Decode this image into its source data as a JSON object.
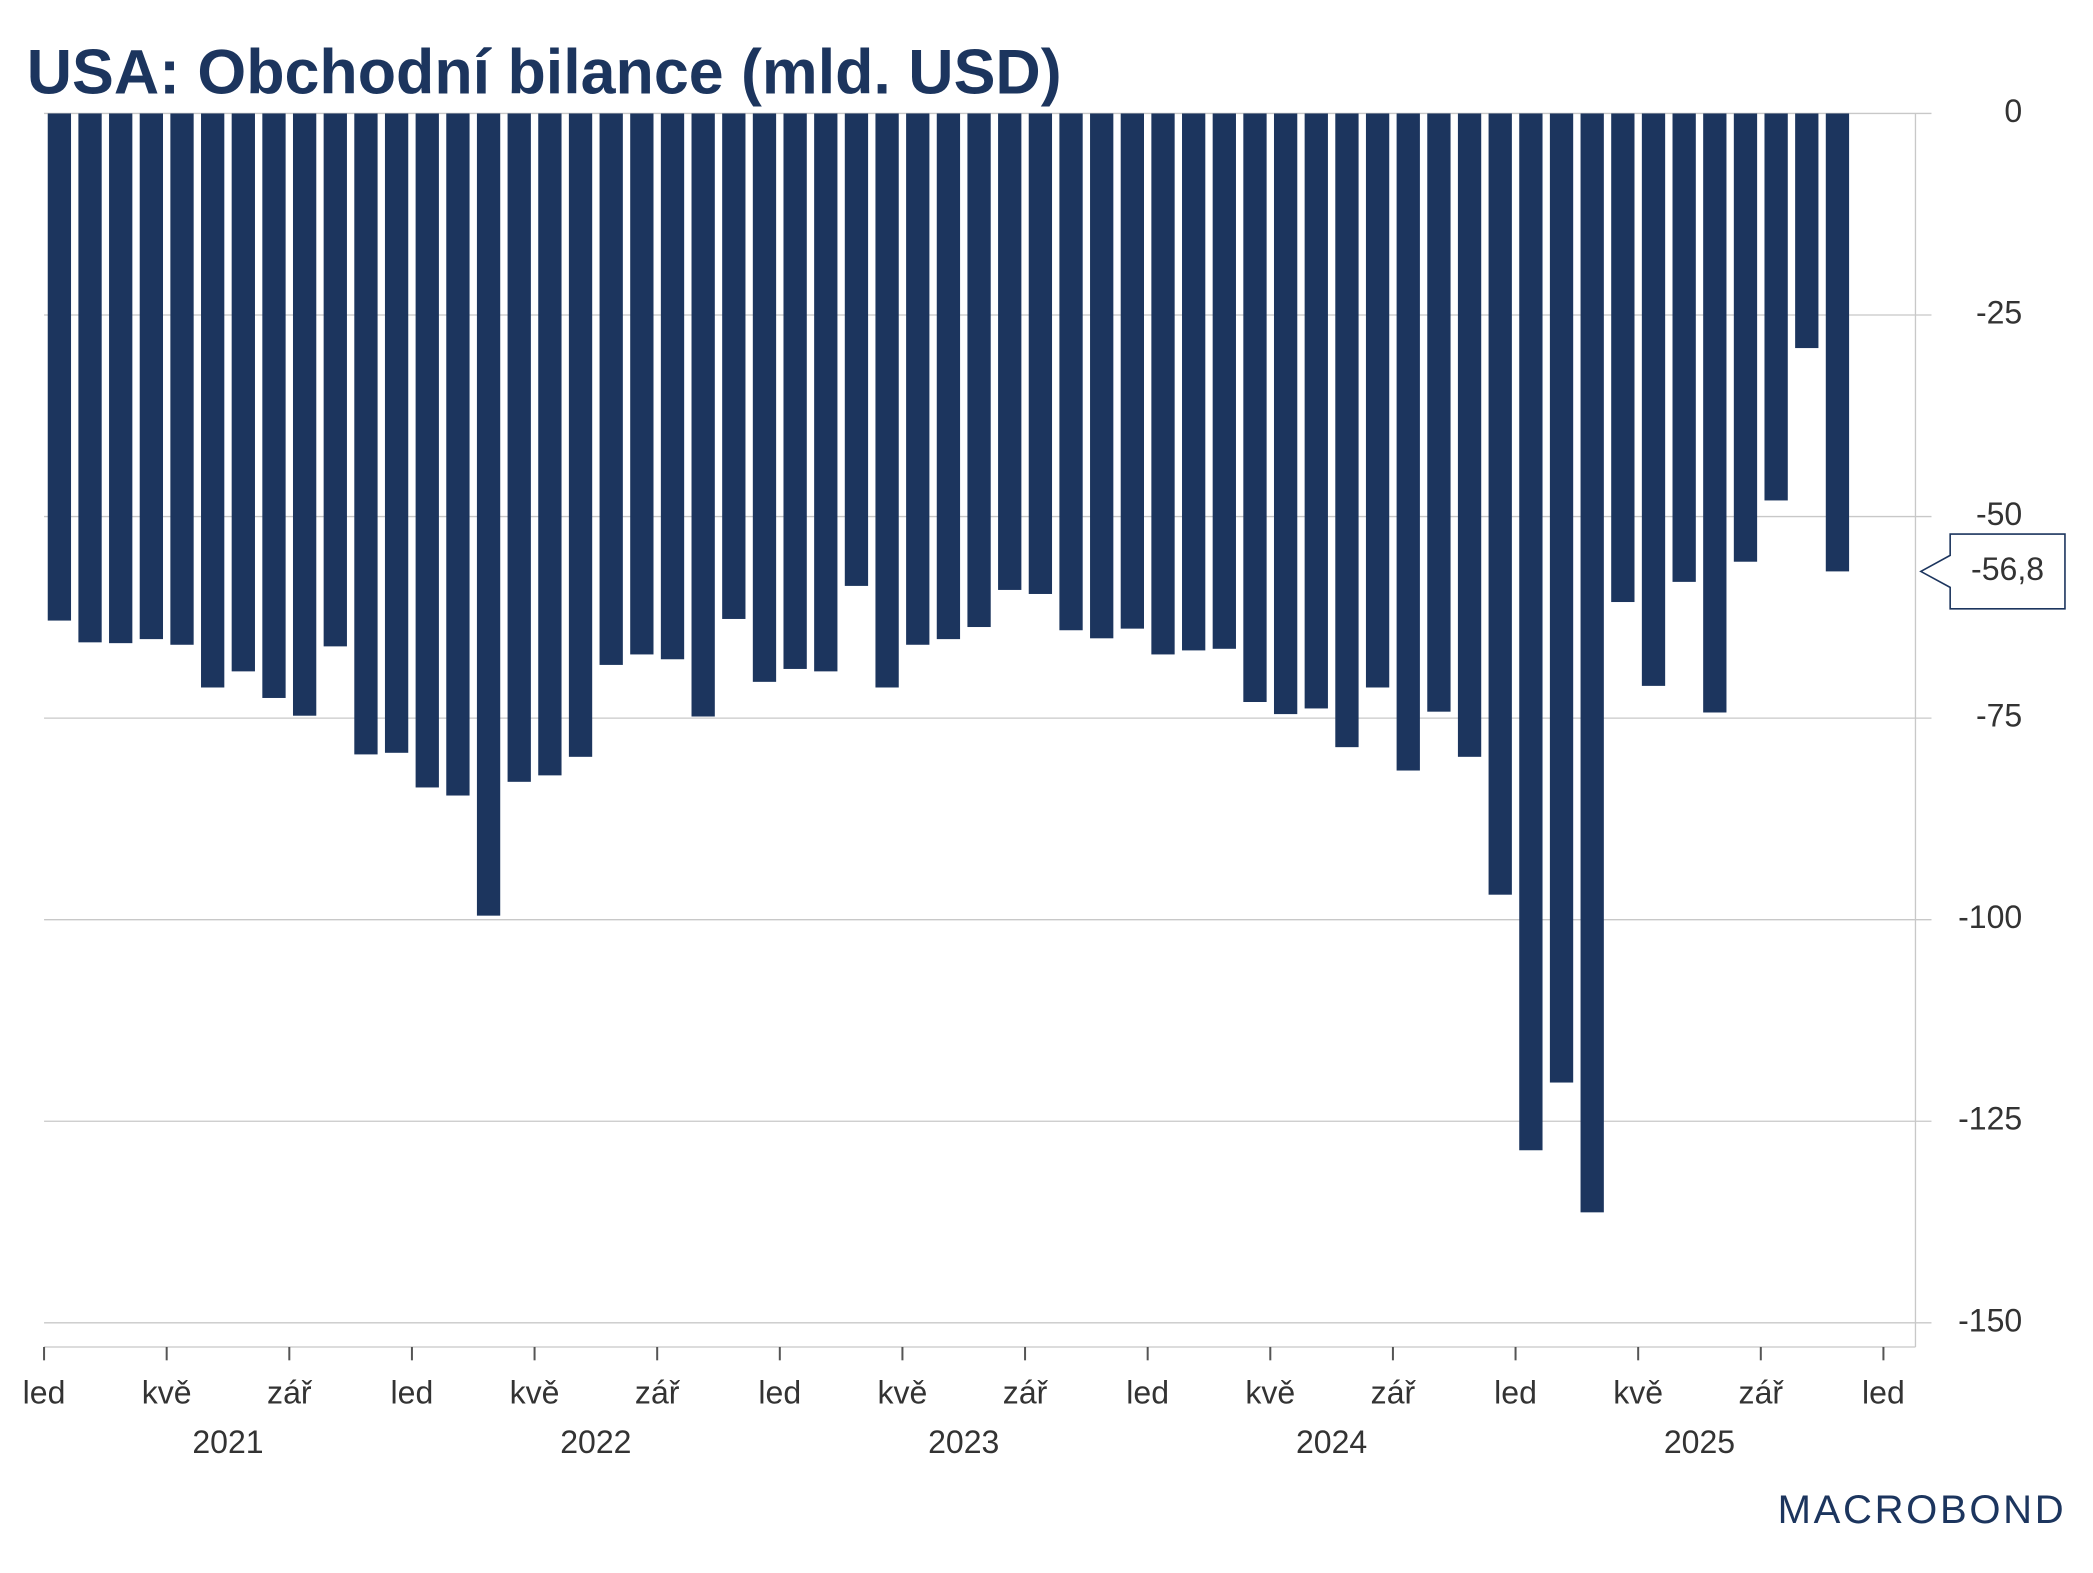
{
  "chart_data": {
    "type": "bar",
    "title": "USA: Obchodní bilance (mld. USD)",
    "source": "MACROBOND",
    "color": "#1c355e",
    "categories": [
      "2021-01",
      "2021-02",
      "2021-03",
      "2021-04",
      "2021-05",
      "2021-06",
      "2021-07",
      "2021-08",
      "2021-09",
      "2021-10",
      "2021-11",
      "2021-12",
      "2022-01",
      "2022-02",
      "2022-03",
      "2022-04",
      "2022-05",
      "2022-06",
      "2022-07",
      "2022-08",
      "2022-09",
      "2022-10",
      "2022-11",
      "2022-12",
      "2023-01",
      "2023-02",
      "2023-03",
      "2023-04",
      "2023-05",
      "2023-06",
      "2023-07",
      "2023-08",
      "2023-09",
      "2023-10",
      "2023-11",
      "2023-12",
      "2024-01",
      "2024-02",
      "2024-03",
      "2024-04",
      "2024-05",
      "2024-06",
      "2024-07",
      "2024-08",
      "2024-09",
      "2024-10",
      "2024-11",
      "2024-12",
      "2025-01",
      "2025-02",
      "2025-03",
      "2025-04",
      "2025-05",
      "2025-06",
      "2025-07",
      "2025-08",
      "2025-09",
      "2025-10",
      "2025-11"
    ],
    "values": [
      -62.9,
      -65.6,
      -65.7,
      -65.2,
      -65.9,
      -71.2,
      -69.2,
      -72.5,
      -74.7,
      -66.1,
      -79.5,
      -79.3,
      -83.6,
      -84.6,
      -99.5,
      -82.9,
      -82.1,
      -79.8,
      -68.4,
      -67.1,
      -67.7,
      -74.8,
      -62.7,
      -70.5,
      -68.9,
      -69.2,
      -58.6,
      -71.2,
      -65.9,
      -65.2,
      -63.7,
      -59.1,
      -59.6,
      -64.1,
      -65.1,
      -63.9,
      -67.1,
      -66.6,
      -66.4,
      -73.0,
      -74.5,
      -73.8,
      -78.6,
      -71.2,
      -81.5,
      -74.2,
      -79.8,
      -96.9,
      -128.6,
      -120.2,
      -136.3,
      -60.6,
      -71.0,
      -58.1,
      -74.3,
      -55.6,
      -48.0,
      -29.1,
      -56.8
    ],
    "value_labels": [
      null,
      null,
      null,
      null,
      null,
      null,
      null,
      null,
      null,
      null,
      null,
      null,
      null,
      null,
      null,
      null,
      null,
      null,
      null,
      null,
      null,
      null,
      null,
      null,
      null,
      null,
      null,
      null,
      null,
      null,
      null,
      null,
      null,
      null,
      null,
      null,
      null,
      null,
      null,
      null,
      null,
      null,
      null,
      null,
      null,
      null,
      null,
      null,
      null,
      null,
      null,
      null,
      null,
      null,
      null,
      null,
      null,
      null,
      "-56,8"
    ],
    "xlim": [
      "2021-01",
      "2026-01"
    ],
    "xticks": [
      {
        "value": "2021-01",
        "label": "led"
      },
      {
        "value": "2021-05",
        "label": "kvě"
      },
      {
        "value": "2021-09",
        "label": "zář"
      },
      {
        "value": "2022-01",
        "label": "led"
      },
      {
        "value": "2022-05",
        "label": "kvě"
      },
      {
        "value": "2022-09",
        "label": "zář"
      },
      {
        "value": "2023-01",
        "label": "led"
      },
      {
        "value": "2023-05",
        "label": "kvě"
      },
      {
        "value": "2023-09",
        "label": "zář"
      },
      {
        "value": "2024-01",
        "label": "led"
      },
      {
        "value": "2024-05",
        "label": "kvě"
      },
      {
        "value": "2024-09",
        "label": "zář"
      },
      {
        "value": "2025-01",
        "label": "led"
      },
      {
        "value": "2025-05",
        "label": "kvě"
      },
      {
        "value": "2025-09",
        "label": "zář"
      },
      {
        "value": "2026-01",
        "label": "led"
      }
    ],
    "years": [
      "2021",
      "2022",
      "2023",
      "2024",
      "2025"
    ],
    "ylim": [
      -153,
      0
    ],
    "yticks": [
      0,
      -25,
      -50,
      -75,
      -100,
      -125,
      -150
    ],
    "grid": true
  }
}
